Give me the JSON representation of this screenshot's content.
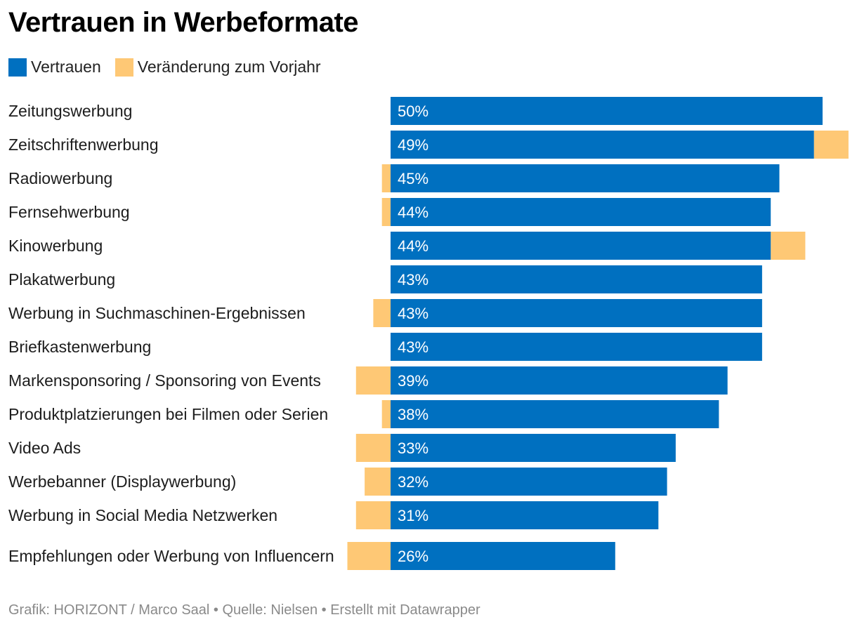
{
  "title": "Vertrauen in Werbeformate",
  "legend": [
    {
      "label": "Vertrauen",
      "color": "#0070c0"
    },
    {
      "label": "Veränderung zum Vorjahr",
      "color": "#fec875"
    }
  ],
  "footer": "Grafik: HORIZONT / Marco Saal • Quelle: Nielsen • Erstellt mit Datawrapper",
  "chart_data": {
    "type": "bar",
    "orientation": "horizontal",
    "title": "Vertrauen in Werbeformate",
    "categories": [
      "Zeitungswerbung",
      "Zeitschriftenwerbung",
      "Radiowerbung",
      "Fernsehwerbung",
      "Kinowerbung",
      "Plakatwerbung",
      "Werbung in Suchmaschinen-Ergebnissen",
      "Briefkastenwerbung",
      "Markensponsoring / Sponsoring von Events",
      "Produktplatzierungen bei Filmen oder Serien",
      "Video Ads",
      "Werbebanner (Displaywerbung)",
      "Werbung in Social Media Netzwerken",
      "Empfehlungen oder Werbung von Influencern"
    ],
    "series": [
      {
        "name": "Vertrauen",
        "color": "#0070c0",
        "values": [
          50,
          49,
          45,
          44,
          44,
          43,
          43,
          43,
          39,
          38,
          33,
          32,
          31,
          26
        ],
        "labels": [
          "50%",
          "49%",
          "45%",
          "44%",
          "44%",
          "43%",
          "43%",
          "43%",
          "39%",
          "38%",
          "33%",
          "32%",
          "31%",
          "26%"
        ]
      },
      {
        "name": "Veränderung zum Vorjahr",
        "color": "#fec875",
        "values": [
          0,
          4,
          -1,
          -1,
          4,
          0,
          -2,
          0,
          -4,
          -1,
          -4,
          -3,
          -4,
          -5
        ]
      }
    ],
    "xlim": [
      -5,
      54
    ],
    "grid": false,
    "legend_position": "top-left"
  }
}
